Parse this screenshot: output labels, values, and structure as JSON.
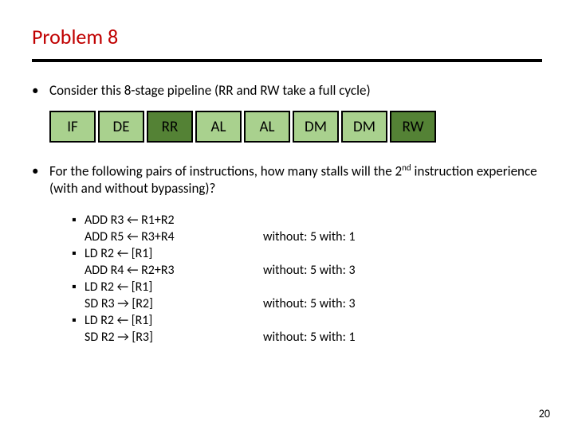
{
  "title": "Problem 8",
  "bullet1": "Consider this 8-stage pipeline (RR and RW take a full cycle)",
  "stages": {
    "if": {
      "label": "IF",
      "bg": "#a9d18e"
    },
    "de": {
      "label": "DE",
      "bg": "#a9d18e"
    },
    "rr": {
      "label": "RR",
      "bg": "#548235"
    },
    "al1": {
      "label": "AL",
      "bg": "#a9d18e"
    },
    "al2": {
      "label": "AL",
      "bg": "#a9d18e"
    },
    "dm1": {
      "label": "DM",
      "bg": "#a9d18e"
    },
    "dm2": {
      "label": "DM",
      "bg": "#a9d18e"
    },
    "rw": {
      "label": "RW",
      "bg": "#548235"
    }
  },
  "bullet2_pre": "For the following pairs of instructions, how many stalls will the 2",
  "bullet2_sup": "nd",
  "bullet2_post": " instruction experience (with and without bypassing)?",
  "pairs": [
    {
      "a": "ADD R3 ← R1+R2",
      "b": "ADD R5 ← R3+R4",
      "answer": "without: 5  with: 1"
    },
    {
      "a": "LD R2 ← [R1]",
      "b": "ADD R4 ← R2+R3",
      "answer": "without: 5   with: 3"
    },
    {
      "a": "LD R2 ← [R1]",
      "b": "SD R3 → [R2]",
      "answer": "without: 5   with: 3"
    },
    {
      "a": "LD R2 ← [R1]",
      "b": "SD R2 → [R3]",
      "answer": "without: 5   with: 1"
    }
  ],
  "page": "20",
  "colors": {
    "title": "#c00000",
    "divider": "#000000",
    "light_green": "#a9d18e",
    "dark_green": "#548235",
    "text": "#000000"
  }
}
